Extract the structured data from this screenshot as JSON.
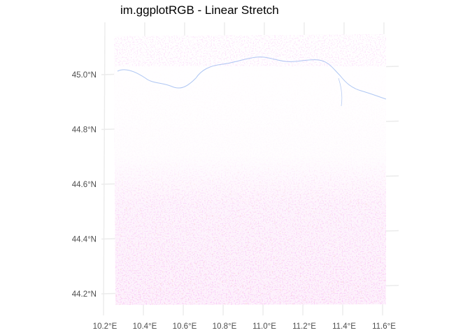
{
  "title": "im.ggplotRGB - Linear Stretch",
  "map": {
    "type": "raster-rgb",
    "x_axis": {
      "range": [
        10.2,
        11.6
      ],
      "ticks": [
        {
          "value": 10.2,
          "label": "10.2°E"
        },
        {
          "value": 10.4,
          "label": "10.4°E"
        },
        {
          "value": 10.6,
          "label": "10.6°E"
        },
        {
          "value": 10.8,
          "label": "10.8°E"
        },
        {
          "value": 11.0,
          "label": "11.0°E"
        },
        {
          "value": 11.2,
          "label": "11.2°E"
        },
        {
          "value": 11.4,
          "label": "11.4°E"
        },
        {
          "value": 11.6,
          "label": "11.6°E"
        }
      ]
    },
    "y_axis": {
      "range": [
        44.2,
        45.0
      ],
      "ticks": [
        {
          "value": 45.0,
          "label": "45.0°N"
        },
        {
          "value": 44.8,
          "label": "44.8°N"
        },
        {
          "value": 44.6,
          "label": "44.6°N"
        },
        {
          "value": 44.4,
          "label": "44.4°N"
        },
        {
          "value": 44.2,
          "label": "44.2°N"
        }
      ]
    },
    "grid": true,
    "colors": {
      "grid": "#ebebeb",
      "tick_text": "#4d4d4d",
      "pink": "#f5a8f0",
      "salmon": "#f4a0a0",
      "river": "#9ab8f0"
    }
  }
}
